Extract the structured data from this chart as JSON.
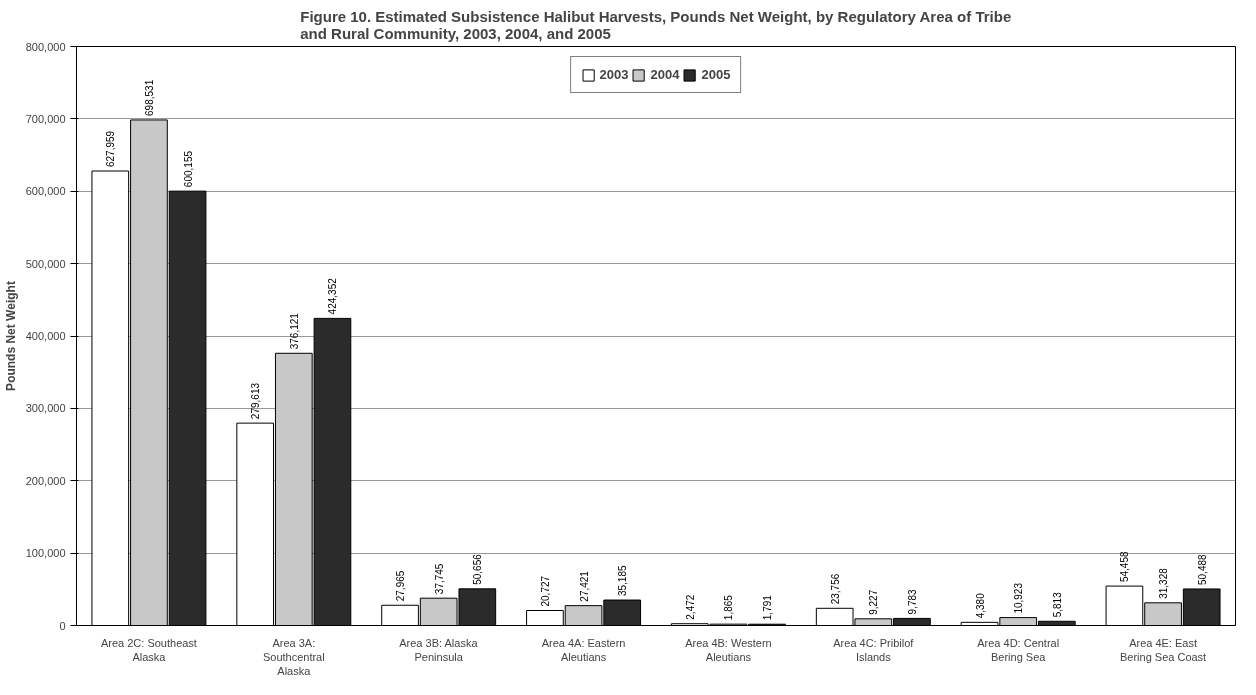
{
  "chart_data": {
    "type": "bar",
    "title": "Figure 10. Estimated Subsistence Halibut Harvests, Pounds Net Weight, by Regulatory Area of Tribe and Rural Community, 2003, 2004, and 2005",
    "ylabel": "Pounds Net Weight",
    "categories": [
      "Area 2C: Southeast Alaska",
      "Area 3A: Southcentral Alaska",
      "Area 3B: Alaska Peninsula",
      "Area 4A: Eastern Aleutians",
      "Area 4B: Western Aleutians",
      "Area 4C: Pribilof Islands",
      "Area 4D: Central Bering Sea",
      "Area 4E: East Bering Sea Coast"
    ],
    "series": [
      {
        "name": "2003",
        "color": "#ffffff",
        "values": [
          627959,
          279613,
          27965,
          20727,
          2472,
          23756,
          4380,
          54458
        ],
        "value_labels": [
          "627,959",
          "279,613",
          "27,965",
          "20,727",
          "2,472",
          "23,756",
          "4,380",
          "54,458"
        ]
      },
      {
        "name": "2004",
        "color": "#c8c8c8",
        "values": [
          698531,
          376121,
          37745,
          27421,
          1865,
          9227,
          10923,
          31328
        ],
        "value_labels": [
          "698,531",
          "376,121",
          "37,745",
          "27,421",
          "1,865",
          "9,227",
          "10,923",
          "31,328"
        ]
      },
      {
        "name": "2005",
        "color": "#2b2b2b",
        "values": [
          600155,
          424352,
          50656,
          35185,
          1791,
          9783,
          5813,
          50488
        ],
        "value_labels": [
          "600,155",
          "424,352",
          "50,656",
          "35,185",
          "1,791",
          "9,783",
          "5,813",
          "50,488"
        ]
      }
    ],
    "ylim": [
      0,
      800000
    ],
    "yticks": [
      {
        "value": 0,
        "label": "0"
      },
      {
        "value": 100000,
        "label": "100,000"
      },
      {
        "value": 200000,
        "label": "200,000"
      },
      {
        "value": 300000,
        "label": "300,000"
      },
      {
        "value": 400000,
        "label": "400,000"
      },
      {
        "value": 500000,
        "label": "500,000"
      },
      {
        "value": 600000,
        "label": "600,000"
      },
      {
        "value": 700000,
        "label": "700,000"
      },
      {
        "value": 800000,
        "label": "800,000"
      }
    ],
    "grid": "y",
    "legend": "top"
  }
}
